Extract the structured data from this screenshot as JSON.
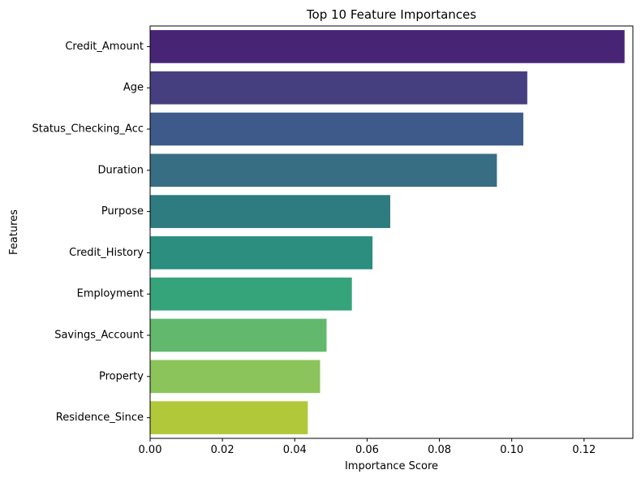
{
  "chart_data": {
    "type": "bar",
    "orientation": "horizontal",
    "title": "Top 10 Feature Importances",
    "xlabel": "Importance Score",
    "ylabel": "Features",
    "categories": [
      "Credit_Amount",
      "Age",
      "Status_Checking_Acc",
      "Duration",
      "Purpose",
      "Credit_History",
      "Employment",
      "Savings_Account",
      "Property",
      "Residence_Since"
    ],
    "values": [
      0.1312,
      0.1043,
      0.1032,
      0.0959,
      0.0664,
      0.0615,
      0.0558,
      0.0488,
      0.047,
      0.0436
    ],
    "colors": [
      "#482475",
      "#453f7f",
      "#3d5a8a",
      "#376e83",
      "#2e7b80",
      "#2b8e7e",
      "#36a47a",
      "#62b86d",
      "#8bc45a",
      "#b1c83a"
    ],
    "xlim": [
      0,
      0.1335
    ],
    "xticks": [
      0.0,
      0.02,
      0.04,
      0.06,
      0.08,
      0.1,
      0.12
    ],
    "xtick_labels": [
      "0.00",
      "0.02",
      "0.04",
      "0.06",
      "0.08",
      "0.10",
      "0.12"
    ],
    "grid": false,
    "legend": "none"
  }
}
